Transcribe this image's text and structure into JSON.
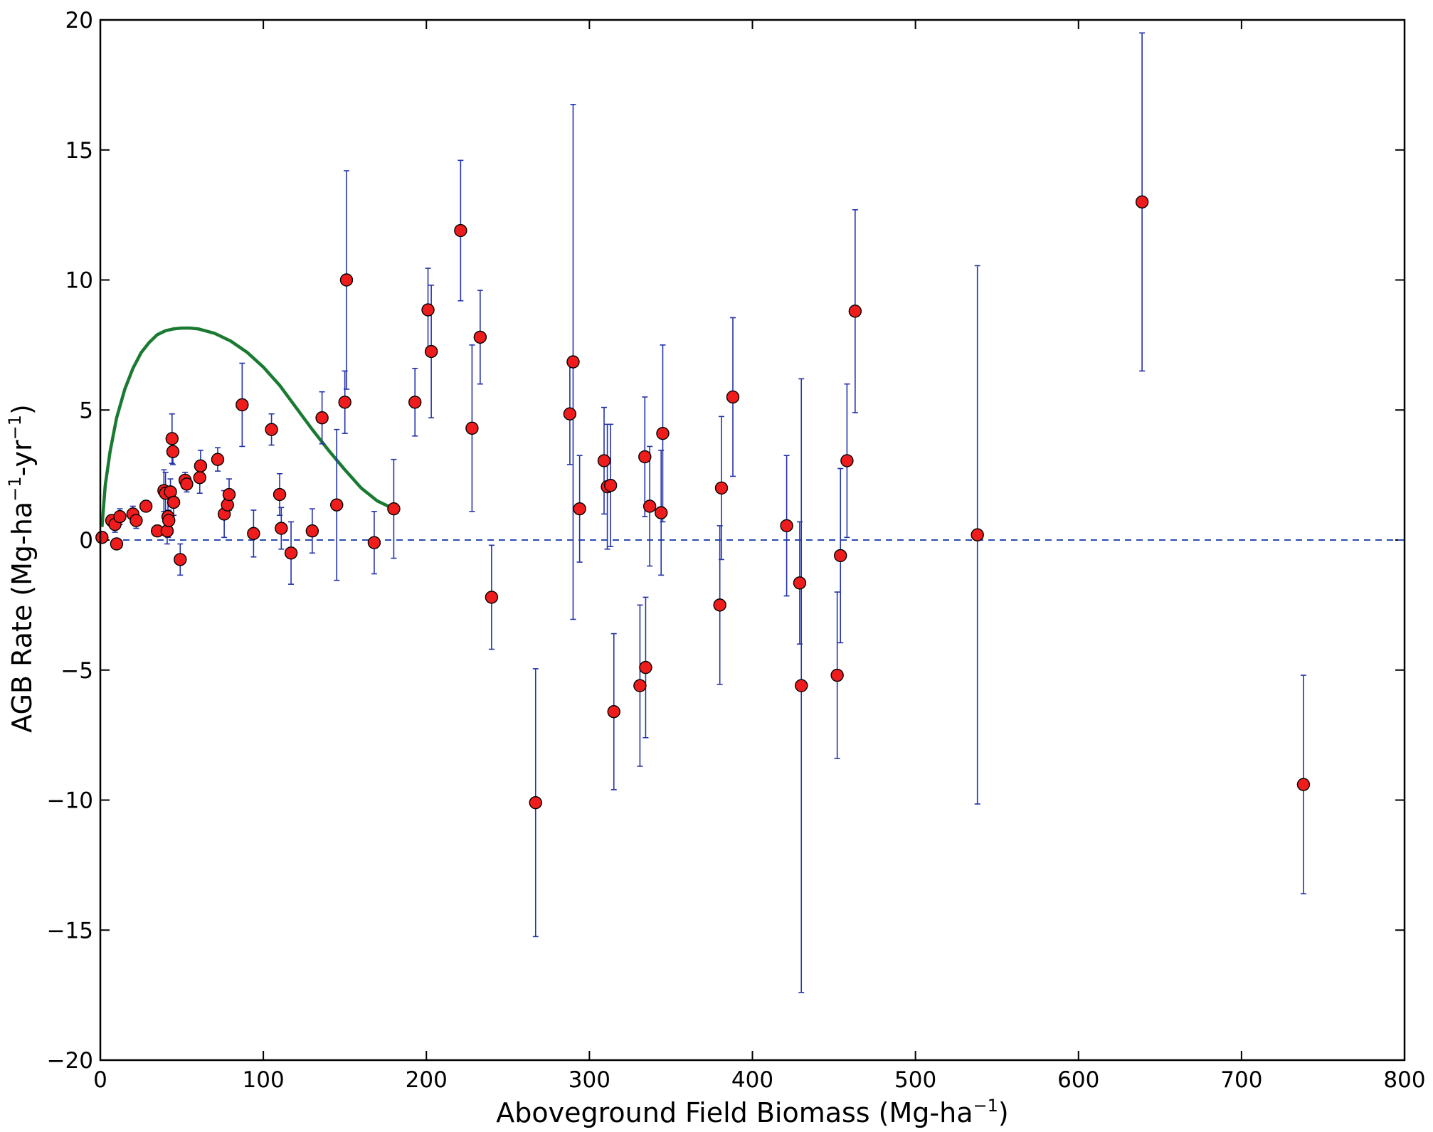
{
  "chart_data": {
    "type": "scatter",
    "xlabel": "Aboveground Field Biomass (Mg-ha",
    "xlabel_sup": "−1",
    "xlabel_end": ")",
    "ylabel": "AGB Rate (Mg-ha",
    "ylabel_sup1": "−1",
    "ylabel_mid": "-yr",
    "ylabel_sup2": "−1",
    "ylabel_end": ")",
    "xlim": [
      0,
      800
    ],
    "ylim": [
      -20,
      20
    ],
    "x_ticks": [
      0,
      100,
      200,
      300,
      400,
      500,
      600,
      700,
      800
    ],
    "y_ticks": [
      -20,
      -15,
      -10,
      -5,
      0,
      5,
      10,
      15,
      20
    ],
    "x_tick_labels": [
      "0",
      "100",
      "200",
      "300",
      "400",
      "500",
      "600",
      "700",
      "800"
    ],
    "y_tick_labels": [
      "−20",
      "−15",
      "−10",
      "−5",
      "0",
      "5",
      "10",
      "15",
      "20"
    ],
    "grid": false,
    "colors": {
      "marker": "#ee1c1c",
      "errorbar": "#2233aa",
      "curve": "#1a7a32",
      "zero_line": "#2b4cb0"
    },
    "zero_line": {
      "y": 0,
      "style": "dashed"
    },
    "fitted_curve": {
      "x": [
        1,
        3,
        6,
        10,
        15,
        20,
        25,
        30,
        35,
        40,
        45,
        50,
        55,
        60,
        70,
        80,
        90,
        100,
        110,
        120,
        130,
        140,
        150,
        160,
        170,
        180
      ],
      "y": [
        0.5,
        2.1,
        3.4,
        4.7,
        5.8,
        6.6,
        7.2,
        7.6,
        7.9,
        8.05,
        8.12,
        8.15,
        8.15,
        8.12,
        7.95,
        7.65,
        7.22,
        6.65,
        5.95,
        5.1,
        4.25,
        3.45,
        2.7,
        2.0,
        1.5,
        1.2
      ]
    },
    "points": [
      {
        "x": 1,
        "y": 0.1
      },
      {
        "x": 7,
        "y": 0.75,
        "err": 0.2
      },
      {
        "x": 9,
        "y": 0.6,
        "err": 0.3
      },
      {
        "x": 10,
        "y": -0.15
      },
      {
        "x": 12,
        "y": 0.9,
        "err": 0.3
      },
      {
        "x": 20,
        "y": 1.0,
        "err": 0.3
      },
      {
        "x": 22,
        "y": 0.75,
        "err": 0.3
      },
      {
        "x": 28,
        "y": 1.3
      },
      {
        "x": 35,
        "y": 0.35
      },
      {
        "x": 39,
        "y": 1.9,
        "err": 0.8
      },
      {
        "x": 40,
        "y": 1.8,
        "err": 0.8
      },
      {
        "x": 41,
        "y": 0.35,
        "err": 0.5
      },
      {
        "x": 41.5,
        "y": 0.9,
        "err": 0.8
      },
      {
        "x": 42,
        "y": 0.75,
        "err": 0.4
      },
      {
        "x": 43,
        "y": 1.85,
        "err": 0.5
      },
      {
        "x": 44,
        "y": 3.9,
        "err": 0.95
      },
      {
        "x": 44.5,
        "y": 3.4,
        "err": 0.5
      },
      {
        "x": 45,
        "y": 1.45,
        "err": 0.5
      },
      {
        "x": 49,
        "y": -0.75,
        "err": 0.6
      },
      {
        "x": 52,
        "y": 2.3,
        "err": 0.3
      },
      {
        "x": 53,
        "y": 2.15,
        "err": 0.3
      },
      {
        "x": 61,
        "y": 2.4,
        "err": 0.6
      },
      {
        "x": 61.5,
        "y": 2.85,
        "err": 0.6
      },
      {
        "x": 72,
        "y": 3.1,
        "err": 0.45
      },
      {
        "x": 76,
        "y": 1.0,
        "err": 0.9
      },
      {
        "x": 78,
        "y": 1.35,
        "err": 0.3
      },
      {
        "x": 79,
        "y": 1.75,
        "err": 0.6
      },
      {
        "x": 87,
        "y": 5.2,
        "err": 1.6
      },
      {
        "x": 94,
        "y": 0.25,
        "err": 0.9
      },
      {
        "x": 105,
        "y": 4.25,
        "err": 0.6
      },
      {
        "x": 110,
        "y": 1.75,
        "err": 0.8
      },
      {
        "x": 111,
        "y": 0.45,
        "err": 0.8
      },
      {
        "x": 117,
        "y": -0.5,
        "err": 1.2
      },
      {
        "x": 130,
        "y": 0.35,
        "err": 0.85
      },
      {
        "x": 136,
        "y": 4.7,
        "err": 1.0
      },
      {
        "x": 145,
        "y": 1.35,
        "err": 2.9
      },
      {
        "x": 150,
        "y": 5.3,
        "err": 1.2
      },
      {
        "x": 151,
        "y": 10.0,
        "err": 4.2
      },
      {
        "x": 168,
        "y": -0.1,
        "err": 1.2
      },
      {
        "x": 180,
        "y": 1.2,
        "err": 1.9
      },
      {
        "x": 193,
        "y": 5.3,
        "err": 1.3
      },
      {
        "x": 201,
        "y": 8.85,
        "err": 1.6
      },
      {
        "x": 203,
        "y": 7.25,
        "err": 2.55
      },
      {
        "x": 221,
        "y": 11.9,
        "err": 2.7
      },
      {
        "x": 228,
        "y": 4.3,
        "err": 3.2
      },
      {
        "x": 233,
        "y": 7.8,
        "err": 1.8
      },
      {
        "x": 240,
        "y": -2.2,
        "err": 2.0
      },
      {
        "x": 267,
        "y": -10.1,
        "err": 5.15
      },
      {
        "x": 288,
        "y": 4.85,
        "err": 1.95
      },
      {
        "x": 290,
        "y": 6.85,
        "err": 9.9
      },
      {
        "x": 294,
        "y": 1.2,
        "err": 2.05
      },
      {
        "x": 309,
        "y": 3.05,
        "err": 2.05
      },
      {
        "x": 311,
        "y": 2.05,
        "err": 2.4
      },
      {
        "x": 313,
        "y": 2.1,
        "err": 2.35
      },
      {
        "x": 315,
        "y": -6.6,
        "err": 3.0
      },
      {
        "x": 331,
        "y": -5.6,
        "err": 3.1
      },
      {
        "x": 334,
        "y": 3.2,
        "err": 2.3
      },
      {
        "x": 334.5,
        "y": -4.9,
        "err": 2.7
      },
      {
        "x": 337,
        "y": 1.3,
        "err": 2.3
      },
      {
        "x": 344,
        "y": 1.05,
        "err": 2.4
      },
      {
        "x": 345,
        "y": 4.1,
        "err": 3.4
      },
      {
        "x": 380,
        "y": -2.5,
        "err": 3.05
      },
      {
        "x": 381,
        "y": 2.0,
        "err": 2.75
      },
      {
        "x": 388,
        "y": 5.5,
        "err": 3.05
      },
      {
        "x": 421,
        "y": 0.55,
        "err": 2.7
      },
      {
        "x": 429,
        "y": -1.65,
        "err": 2.35
      },
      {
        "x": 430,
        "y": -5.6,
        "err": 11.8
      },
      {
        "x": 452,
        "y": -5.2,
        "err": 3.2
      },
      {
        "x": 454,
        "y": -0.6,
        "err": 3.35
      },
      {
        "x": 458,
        "y": 3.05,
        "err": 2.95
      },
      {
        "x": 463,
        "y": 8.8,
        "err": 3.9
      },
      {
        "x": 538,
        "y": 0.2,
        "err": 10.35
      },
      {
        "x": 639,
        "y": 13.0,
        "err": 6.5
      },
      {
        "x": 738,
        "y": -9.4,
        "err": 4.2
      }
    ]
  }
}
